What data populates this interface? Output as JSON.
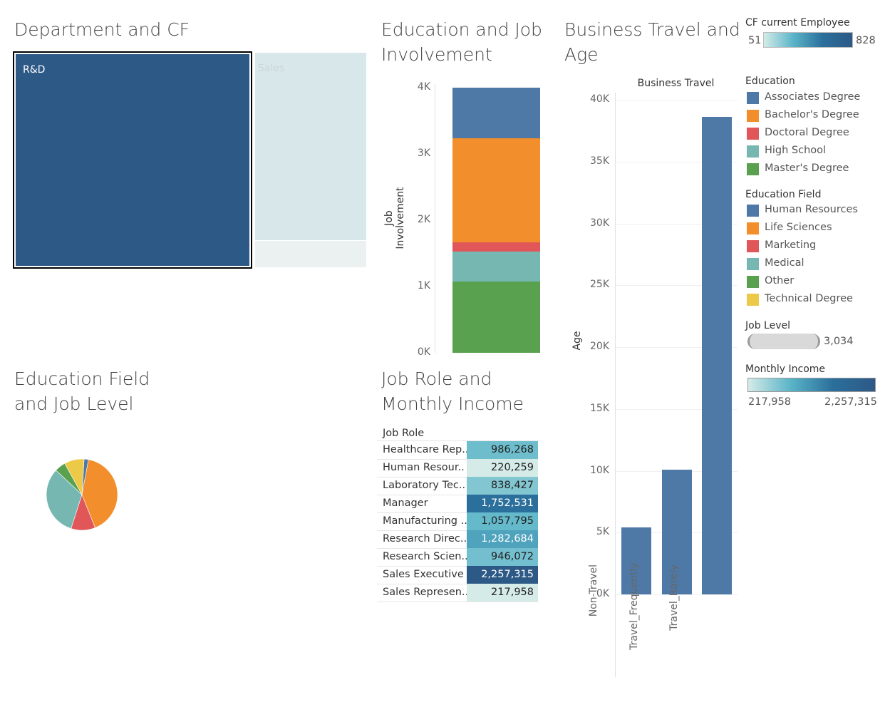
{
  "titles": {
    "dept_cf": "Department and CF",
    "edu_job": "Education and Job\nInvolvement",
    "travel_age": "Business Travel and\nAge",
    "field_level": "Education Field\nand Job Level",
    "role_income": "Job Role and\nMonthly Income"
  },
  "colors": {
    "treemap_rd": "#2d5986",
    "treemap_sales": "#d7e7ea",
    "treemap_small": "#eaf1f0",
    "bar_blue": "#4e79a7",
    "orange": "#f28e2b",
    "red": "#e15759",
    "teal": "#76b7b2",
    "green": "#59a14f",
    "yellow": "#edc948"
  },
  "legends": {
    "cf_current": {
      "title": "CF current Employee",
      "min": "51",
      "max": "828"
    },
    "education": {
      "title": "Education",
      "items": [
        {
          "label": "Associates Degree",
          "color": "#4e79a7"
        },
        {
          "label": "Bachelor's Degree",
          "color": "#f28e2b"
        },
        {
          "label": "Doctoral Degree",
          "color": "#e15759"
        },
        {
          "label": "High School",
          "color": "#76b7b2"
        },
        {
          "label": "Master's Degree",
          "color": "#59a14f"
        }
      ]
    },
    "education_field": {
      "title": "Education Field",
      "items": [
        {
          "label": "Human Resources",
          "color": "#4e79a7"
        },
        {
          "label": "Life Sciences",
          "color": "#f28e2b"
        },
        {
          "label": "Marketing",
          "color": "#e15759"
        },
        {
          "label": "Medical",
          "color": "#76b7b2"
        },
        {
          "label": "Other",
          "color": "#59a14f"
        },
        {
          "label": "Technical Degree",
          "color": "#edc948"
        }
      ]
    },
    "job_level": {
      "title": "Job Level",
      "max": "3,034"
    },
    "monthly_income": {
      "title": "Monthly Income",
      "min": "217,958",
      "max": "2,257,315"
    }
  },
  "chart_data": [
    {
      "type": "treemap",
      "title": "Department and CF",
      "categories": [
        "R&D",
        "Sales",
        ""
      ],
      "values": [
        828,
        400,
        51
      ]
    },
    {
      "type": "bar",
      "title": "Education and Job Involvement",
      "ylabel": "Job Involvement",
      "ylim": [
        0,
        4000
      ],
      "yticks": [
        "0K",
        "1K",
        "2K",
        "3K",
        "4K"
      ],
      "stacked": true,
      "series": [
        {
          "name": "Master's Degree",
          "values": [
            1080
          ]
        },
        {
          "name": "High School",
          "values": [
            450
          ]
        },
        {
          "name": "Doctoral Degree",
          "values": [
            140
          ]
        },
        {
          "name": "Bachelor's Degree",
          "values": [
            1570
          ]
        },
        {
          "name": "Associates Degree",
          "values": [
            760
          ]
        }
      ]
    },
    {
      "type": "bar",
      "title": "Business Travel and Age",
      "xlabel": "Business Travel",
      "ylabel": "Age",
      "categories": [
        "Non-Travel",
        "Travel_Frequently",
        "Travel_Rarely"
      ],
      "values": [
        5400,
        10100,
        38600
      ],
      "ylim": [
        0,
        40000
      ],
      "yticks": [
        "0K",
        "5K",
        "10K",
        "15K",
        "20K",
        "25K",
        "30K",
        "35K",
        "40K"
      ],
      "grid": true
    },
    {
      "type": "pie",
      "title": "Education Field and Job Level",
      "categories": [
        "Human Resources",
        "Life Sciences",
        "Marketing",
        "Medical",
        "Other",
        "Technical Degree"
      ],
      "values": [
        2,
        41,
        11,
        32,
        5,
        9
      ]
    },
    {
      "type": "table",
      "title": "Job Role and Monthly Income",
      "header": "Job Role",
      "categories": [
        "Healthcare Rep..",
        "Human Resour..",
        "Laboratory Tec..",
        "Manager",
        "Manufacturing ..",
        "Research Direc..",
        "Research Scien..",
        "Sales Executive",
        "Sales Represen.."
      ],
      "values": [
        986268,
        220259,
        838427,
        1752531,
        1057795,
        1282684,
        946072,
        2257315,
        217958
      ],
      "labels": [
        "986,268",
        "220,259",
        "838,427",
        "1,752,531",
        "1,057,795",
        "1,282,684",
        "946,072",
        "2,257,315",
        "217,958"
      ]
    }
  ]
}
